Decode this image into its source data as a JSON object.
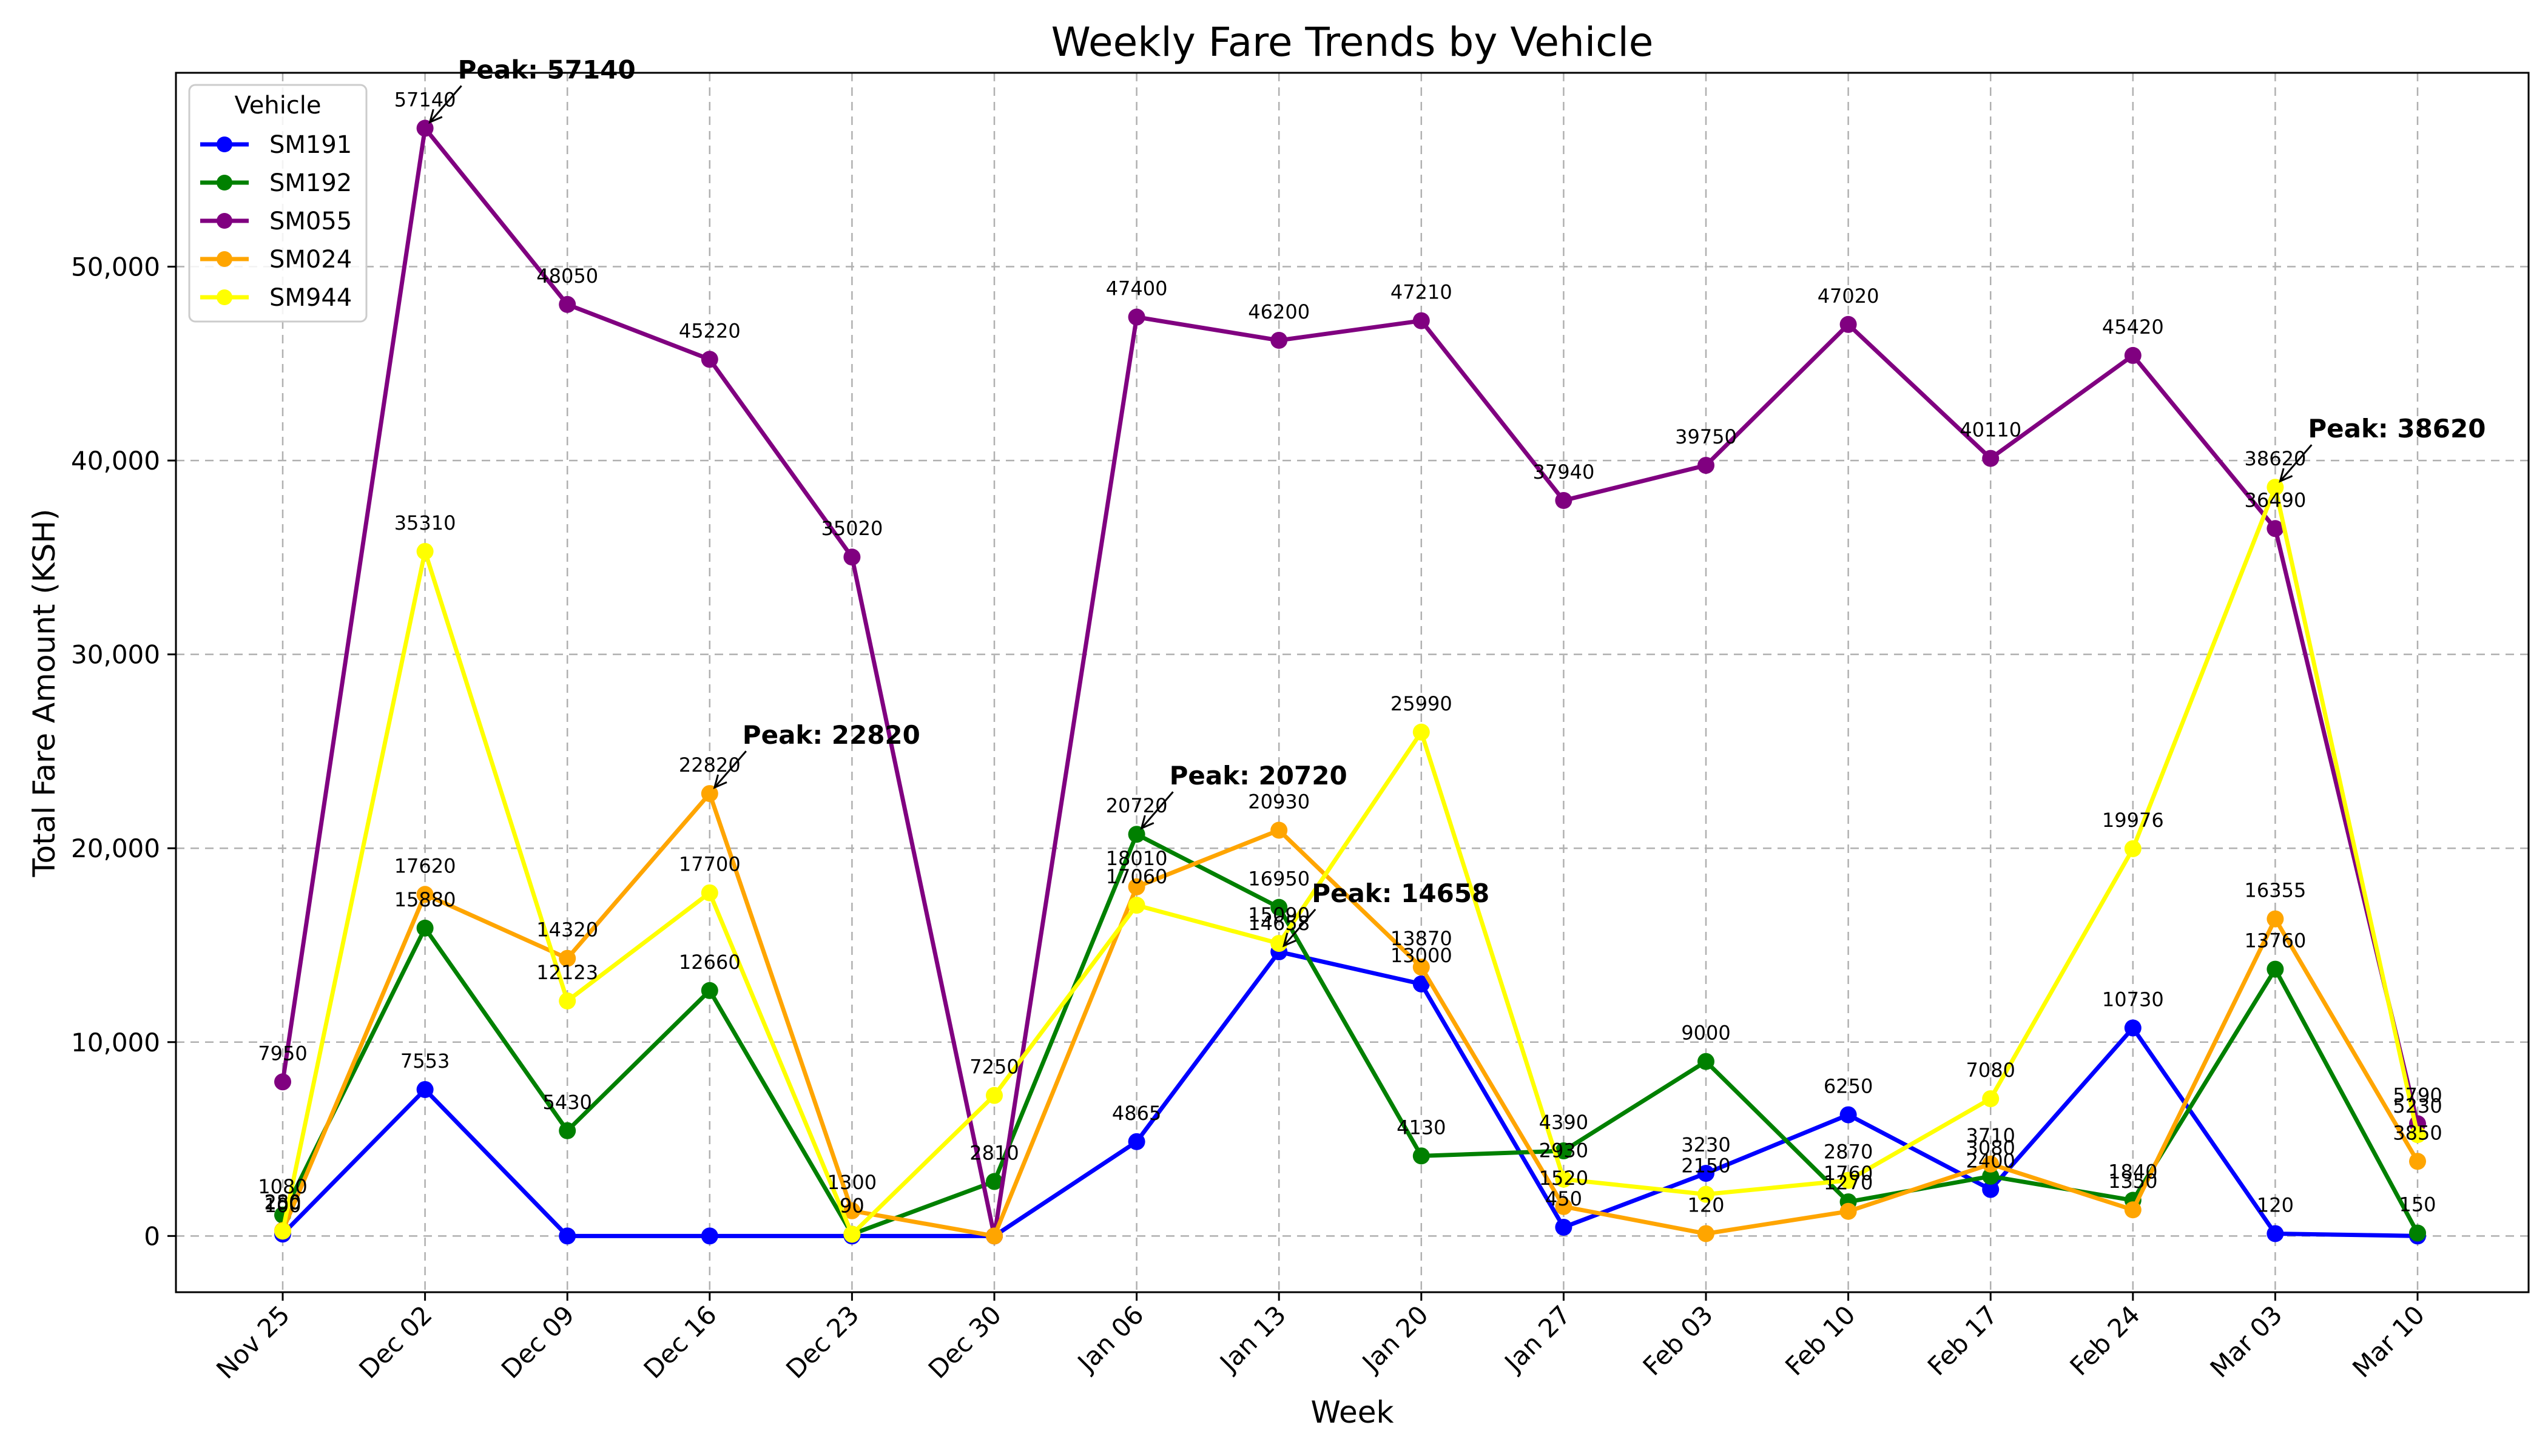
{
  "chart_data": {
    "type": "line",
    "title": "Weekly Fare Trends by Vehicle",
    "xlabel": "Week",
    "ylabel": "Total Fare Amount (KSH)",
    "categories": [
      "Nov 25",
      "Dec 02",
      "Dec 09",
      "Dec 16",
      "Dec 23",
      "Dec 30",
      "Jan 06",
      "Jan 13",
      "Jan 20",
      "Jan 27",
      "Feb 03",
      "Feb 10",
      "Feb 17",
      "Feb 24",
      "Mar 03",
      "Mar 10"
    ],
    "ylim": [
      -2900,
      60000
    ],
    "yticks": [
      0,
      10000,
      20000,
      30000,
      40000,
      50000
    ],
    "ytick_labels": [
      "0",
      "10,000",
      "20,000",
      "30,000",
      "40,000",
      "50,000"
    ],
    "grid": true,
    "legend": {
      "title": "Vehicle",
      "placement": "top-left"
    },
    "series": [
      {
        "name": "SM191",
        "color": "#0000ff",
        "values": [
          100,
          7553,
          0,
          0,
          0,
          0,
          4865,
          14658,
          13000,
          450,
          3230,
          6250,
          2400,
          10730,
          120,
          0
        ],
        "labels": [
          "100",
          "7553",
          "",
          "",
          "",
          "",
          "4865",
          "14658",
          "13000",
          "450",
          "3230",
          "6250",
          "2400",
          "10730",
          "120",
          ""
        ]
      },
      {
        "name": "SM192",
        "color": "#008000",
        "values": [
          1080,
          15880,
          5430,
          12660,
          90,
          2810,
          20720,
          16950,
          4130,
          4390,
          9000,
          1760,
          3080,
          1840,
          13760,
          150
        ],
        "labels": [
          "1080",
          "15880",
          "5430",
          "12660",
          "90",
          "2810",
          "20720",
          "16950",
          "4130",
          "4390",
          "9000",
          "1760",
          "3080",
          "1840",
          "13760",
          "150"
        ]
      },
      {
        "name": "SM055",
        "color": "#800080",
        "values": [
          7950,
          57140,
          48050,
          45220,
          35020,
          0,
          47400,
          46200,
          47210,
          37940,
          39750,
          47020,
          40110,
          45420,
          36490,
          5790
        ],
        "labels": [
          "7950",
          "57140",
          "48050",
          "45220",
          "35020",
          "",
          "47400",
          "46200",
          "47210",
          "37940",
          "39750",
          "47020",
          "40110",
          "45420",
          "36490",
          "5790"
        ]
      },
      {
        "name": "SM024",
        "color": "#ffa500",
        "values": [
          280,
          17620,
          14320,
          22820,
          1300,
          0,
          18010,
          20930,
          13870,
          1520,
          120,
          1270,
          3710,
          1350,
          16355,
          3850
        ],
        "labels": [
          "280",
          "17620",
          "14320",
          "22820",
          "1300",
          "",
          "18010",
          "20930",
          "13870",
          "1520",
          "120",
          "1270",
          "3710",
          "1350",
          "16355",
          "3850"
        ]
      },
      {
        "name": "SM944",
        "color": "#ffff00",
        "values": [
          250,
          35310,
          12123,
          17700,
          90,
          7250,
          17060,
          15090,
          25990,
          2930,
          2150,
          2870,
          7080,
          19976,
          38620,
          5230
        ],
        "labels": [
          "250",
          "35310",
          "12123",
          "17700",
          "90",
          "7250",
          "17060",
          "15090",
          "25990",
          "2930",
          "2150",
          "2870",
          "7080",
          "19976",
          "38620",
          "5230"
        ]
      }
    ],
    "annotations": [
      {
        "text": "Peak: 57140",
        "series": "SM055",
        "index": 1
      },
      {
        "text": "Peak: 20720",
        "series": "SM192",
        "index": 6
      },
      {
        "text": "Peak: 14658",
        "series": "SM191",
        "index": 7
      },
      {
        "text": "Peak: 22820",
        "series": "SM024",
        "index": 3
      },
      {
        "text": "Peak: 38620",
        "series": "SM944",
        "index": 14
      }
    ]
  }
}
